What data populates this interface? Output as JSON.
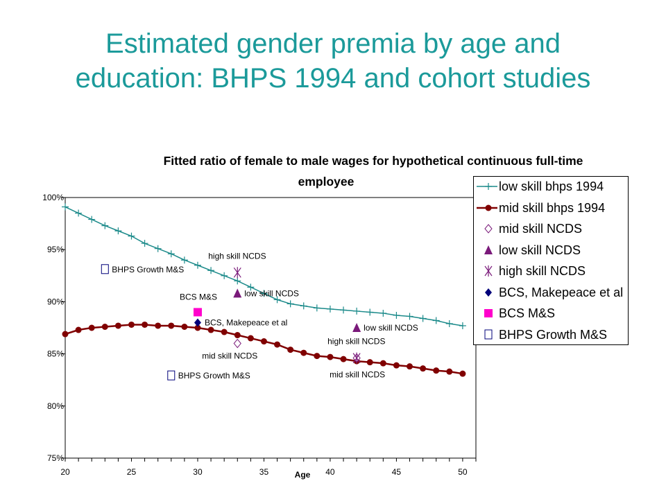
{
  "slide": {
    "title_line1": "Estimated gender premia by age and",
    "title_line2": "education: BHPS 1994 and cohort studies"
  },
  "chart_data": {
    "type": "line",
    "title_line1": "Fitted ratio of female to male wages for hypothetical continuous full-time",
    "title_line2": "employee",
    "xlabel": "Age",
    "ylabel": "",
    "xlim": [
      20,
      51
    ],
    "ylim": [
      75,
      100
    ],
    "x_ticks": [
      20,
      25,
      30,
      35,
      40,
      45,
      50
    ],
    "y_ticks": [
      75,
      80,
      85,
      90,
      95,
      100
    ],
    "y_tick_labels": [
      "75%",
      "80%",
      "85%",
      "90%",
      "95%",
      "100%"
    ],
    "grid": false,
    "legend_position": "top-right",
    "colors": {
      "low_skill_bhps": "#1b8a8a",
      "mid_skill_bhps": "#800000",
      "ncds": "#7a1a7a",
      "bcs_makepeace": "#00007a",
      "bcs_ms": "#ff00cc",
      "bhps_growth": "#00007a"
    },
    "series": [
      {
        "name": "low skill bhps 1994",
        "marker": "plus",
        "x": [
          20,
          21,
          22,
          23,
          24,
          25,
          26,
          27,
          28,
          29,
          30,
          31,
          32,
          33,
          34,
          35,
          36,
          37,
          38,
          39,
          40,
          41,
          42,
          43,
          44,
          45,
          46,
          47,
          48,
          49,
          50
        ],
        "values": [
          99.1,
          98.5,
          97.9,
          97.3,
          96.8,
          96.3,
          95.6,
          95.1,
          94.6,
          94.0,
          93.5,
          93.0,
          92.5,
          92.0,
          91.4,
          90.8,
          90.2,
          89.8,
          89.6,
          89.4,
          89.3,
          89.2,
          89.1,
          89.0,
          88.9,
          88.7,
          88.6,
          88.4,
          88.2,
          87.9,
          87.7
        ]
      },
      {
        "name": "mid skill bhps 1994",
        "marker": "circle",
        "x": [
          20,
          21,
          22,
          23,
          24,
          25,
          26,
          27,
          28,
          29,
          30,
          31,
          32,
          33,
          34,
          35,
          36,
          37,
          38,
          39,
          40,
          41,
          42,
          43,
          44,
          45,
          46,
          47,
          48,
          49,
          50
        ],
        "values": [
          86.9,
          87.3,
          87.5,
          87.6,
          87.7,
          87.8,
          87.8,
          87.7,
          87.7,
          87.6,
          87.5,
          87.3,
          87.1,
          86.8,
          86.5,
          86.2,
          85.9,
          85.4,
          85.1,
          84.8,
          84.7,
          84.5,
          84.3,
          84.2,
          84.1,
          83.9,
          83.8,
          83.6,
          83.4,
          83.3,
          83.1
        ]
      },
      {
        "name": "mid skill NCDS",
        "marker": "diamond-open",
        "points": [
          {
            "x": 33,
            "y": 86.0
          },
          {
            "x": 42,
            "y": 84.6
          }
        ]
      },
      {
        "name": "low skill NCDS",
        "marker": "triangle",
        "points": [
          {
            "x": 33,
            "y": 90.8
          },
          {
            "x": 42,
            "y": 87.5
          }
        ]
      },
      {
        "name": "high skill NCDS",
        "marker": "asterisk",
        "points": [
          {
            "x": 33,
            "y": 92.8
          },
          {
            "x": 42,
            "y": 84.6
          }
        ]
      },
      {
        "name": "BCS, Makepeace et al",
        "marker": "diamond",
        "points": [
          {
            "x": 30,
            "y": 88.0
          }
        ]
      },
      {
        "name": "BCS M&S",
        "marker": "square",
        "points": [
          {
            "x": 30,
            "y": 89.0
          }
        ]
      },
      {
        "name": "BHPS Growth M&S",
        "marker": "square-open",
        "points": [
          {
            "x": 23,
            "y": 93.1
          },
          {
            "x": 28,
            "y": 82.9
          }
        ]
      }
    ],
    "annotations": [
      {
        "text": "high skill NCDS",
        "x": 33,
        "y": 92.8
      },
      {
        "text": "BHPS Growth M&S",
        "x": 23,
        "y": 93.1
      },
      {
        "text": "low skill NCDS",
        "x": 33,
        "y": 90.8
      },
      {
        "text": "BCS M&S",
        "x": 30,
        "y": 89.0
      },
      {
        "text": "BCS, Makepeace et al",
        "x": 30,
        "y": 88.0
      },
      {
        "text": "low skill NCDS",
        "x": 42,
        "y": 87.5
      },
      {
        "text": "high skill NCDS",
        "x": 42,
        "y": 84.6
      },
      {
        "text": "mid skill NCDS",
        "x": 33,
        "y": 86.0
      },
      {
        "text": "mid skill NCDS",
        "x": 42,
        "y": 84.6
      },
      {
        "text": "BHPS Growth M&S",
        "x": 28,
        "y": 82.9
      }
    ]
  }
}
